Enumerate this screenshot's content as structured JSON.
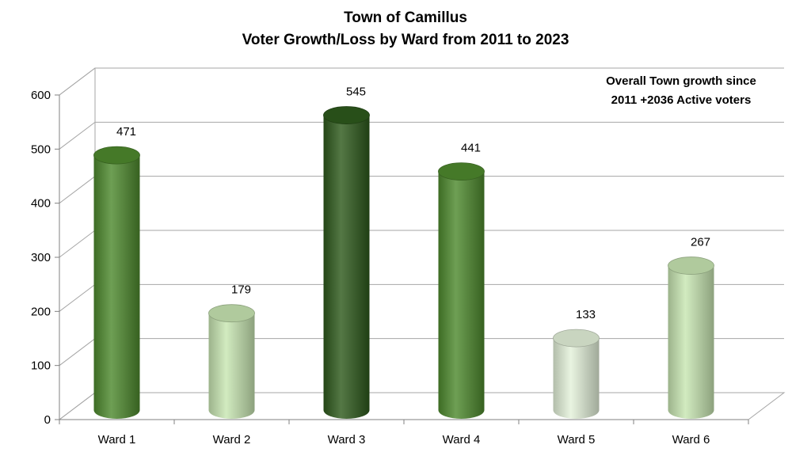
{
  "chart_data": {
    "type": "bar",
    "style": "3d-cylinder",
    "title": "Town of Camillus",
    "subtitle": "Voter Growth/Loss by Ward from 2011 to 2023",
    "categories": [
      "Ward 1",
      "Ward 2",
      "Ward 3",
      "Ward 4",
      "Ward 5",
      "Ward 6"
    ],
    "values": [
      471,
      179,
      545,
      441,
      133,
      267
    ],
    "data_labels": [
      "471",
      "179",
      "545",
      "441",
      "133",
      "267"
    ],
    "bar_colors": [
      "#4e8a2e",
      "#c8e6b2",
      "#2e5a1c",
      "#4e8a2e",
      "#e4f2da",
      "#c8e6b2"
    ],
    "ylim": [
      0,
      600
    ],
    "yticks": [
      0,
      100,
      200,
      300,
      400,
      500,
      600
    ],
    "ytick_labels": [
      "0",
      "100",
      "200",
      "300",
      "400",
      "500",
      "600"
    ],
    "grid": true,
    "legend": "none",
    "annotation": {
      "line1": "Overall Town growth since",
      "line2": "2011 +2036 Active voters"
    }
  }
}
